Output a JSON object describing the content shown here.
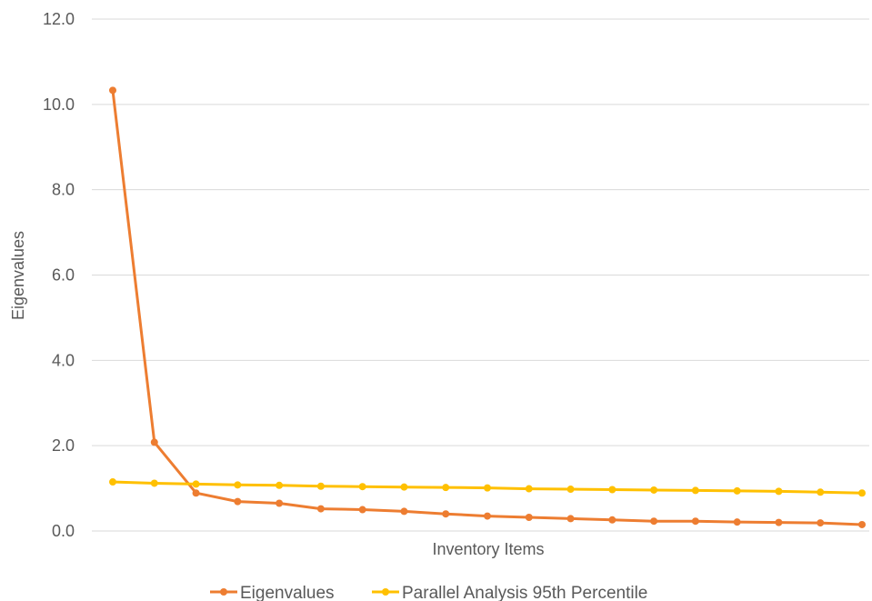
{
  "chart_data": {
    "type": "line",
    "title": "",
    "xlabel": "Inventory Items",
    "ylabel": "Eigenvalues",
    "ylim": [
      0,
      12
    ],
    "yticks": [
      0,
      2,
      4,
      6,
      8,
      10,
      12
    ],
    "ytick_labels": [
      "0.0",
      "2.0",
      "4.0",
      "6.0",
      "8.0",
      "10.0",
      "12.0"
    ],
    "grid": true,
    "legend_position": "bottom",
    "x": [
      1,
      2,
      3,
      4,
      5,
      6,
      7,
      8,
      9,
      10,
      11,
      12,
      13,
      14,
      15,
      16,
      17,
      18,
      19
    ],
    "series": [
      {
        "name": "Eigenvalues",
        "color": "#ED7D31",
        "values": [
          10.33,
          2.08,
          0.89,
          0.69,
          0.65,
          0.52,
          0.5,
          0.46,
          0.4,
          0.35,
          0.32,
          0.29,
          0.26,
          0.23,
          0.23,
          0.21,
          0.2,
          0.19,
          0.15
        ]
      },
      {
        "name": "Parallel Analysis 95th Percentile",
        "color": "#FFC000",
        "values": [
          1.15,
          1.12,
          1.1,
          1.08,
          1.07,
          1.05,
          1.04,
          1.03,
          1.02,
          1.01,
          0.99,
          0.98,
          0.97,
          0.96,
          0.95,
          0.94,
          0.93,
          0.91,
          0.89
        ]
      }
    ]
  }
}
